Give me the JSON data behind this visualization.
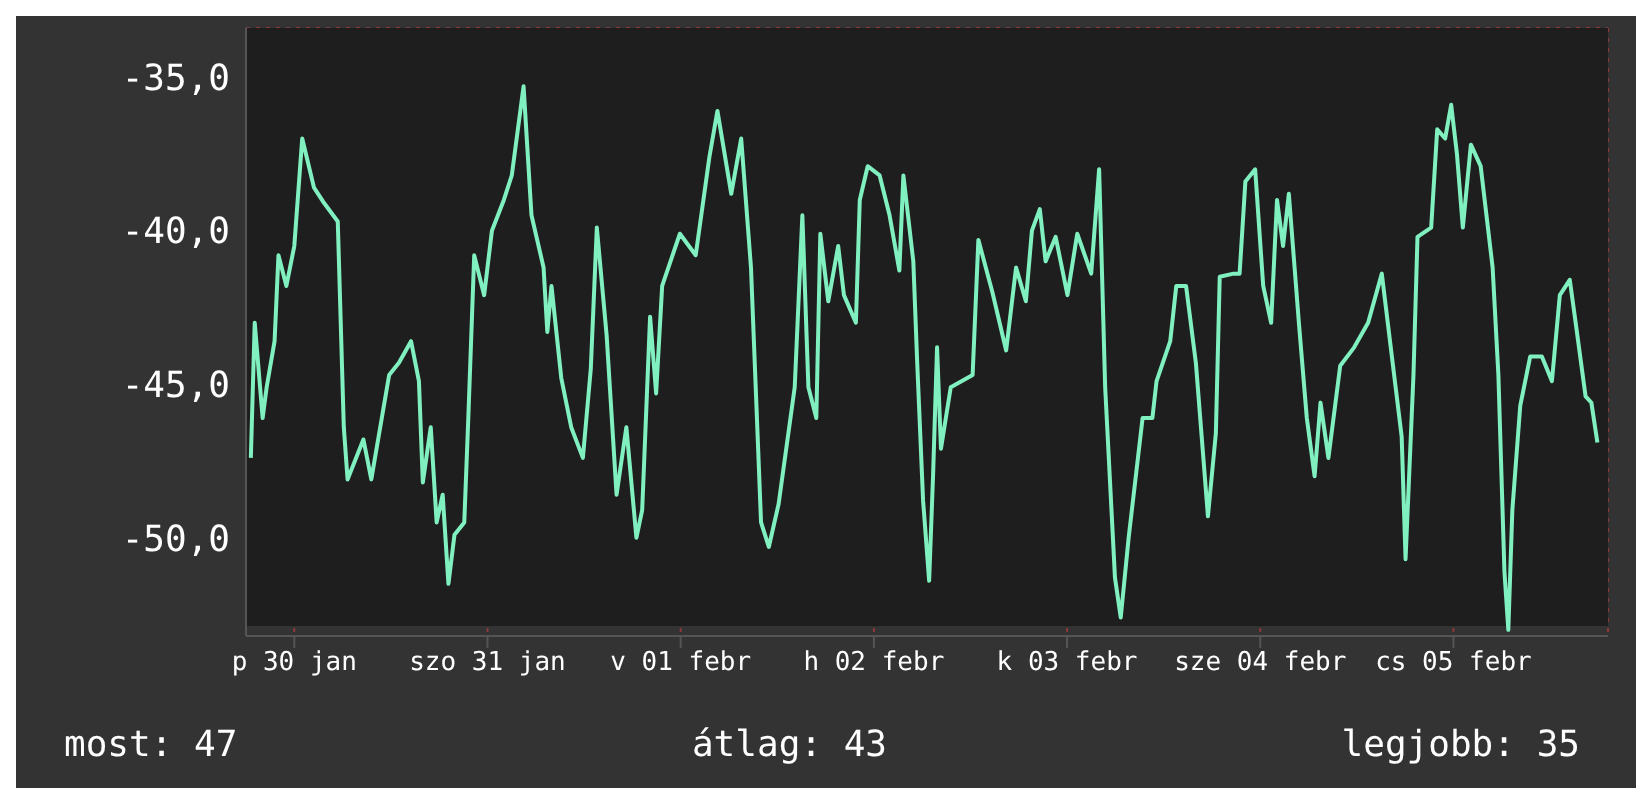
{
  "chart_data": {
    "type": "line",
    "xlim": [
      "--01-29T18:00",
      "--02-05T19:12"
    ],
    "ylim": [
      -53.2,
      -33.4
    ],
    "xticks": [
      {
        "value": "--01-30",
        "label": "p 30 jan"
      },
      {
        "value": "--01-31",
        "label": "szo 31 jan"
      },
      {
        "value": "--02-01",
        "label": "v 01 febr"
      },
      {
        "value": "--02-02",
        "label": "h 02 febr"
      },
      {
        "value": "--02-03",
        "label": "k 03 febr"
      },
      {
        "value": "--02-04",
        "label": "sze 04 febr"
      },
      {
        "value": "--02-05",
        "label": "cs 05 febr"
      }
    ],
    "yticks": [
      {
        "value": -35,
        "label": "-35,0"
      },
      {
        "value": -40,
        "label": "-40,0"
      },
      {
        "value": -45,
        "label": "-45,0"
      },
      {
        "value": -50,
        "label": "-50,0"
      }
    ],
    "grid": true,
    "legend": false,
    "marker": "none",
    "line_style": "solid",
    "annotations": [
      "most: 47",
      "átlag: 43",
      "legjobb: 35"
    ],
    "series": [
      {
        "color": "#80f0c0",
        "x": [
          "--01-29T18:36",
          "--01-29T19:05",
          "--01-29T20:04",
          "--01-29T20:34",
          "--01-29T21:33",
          "--01-29T22:02",
          "--01-29T23:01",
          "--01-30T00:00",
          "--01-30T00:59",
          "--01-30T02:27",
          "--01-30T03:42",
          "--01-30T05:24",
          "--01-30T06:09",
          "--01-30T06:37",
          "--01-30T08:35",
          "--01-30T09:34",
          "--01-30T11:47",
          "--01-30T13:00",
          "--01-30T14:30",
          "--01-30T15:29",
          "--01-30T15:58",
          "--01-30T16:57",
          "--01-30T17:41",
          "--01-30T18:26",
          "--01-30T19:09",
          "--01-30T19:54",
          "--01-30T21:07",
          "--01-30T21:37",
          "--01-30T22:21",
          "--01-30T23:35",
          "--01-31T00:33",
          "--01-31T02:02",
          "--01-31T03:01",
          "--01-31T04:29",
          "--01-31T05:28",
          "--01-31T06:58",
          "--01-31T07:26",
          "--01-31T07:57",
          "--01-31T09:10",
          "--01-31T10:24",
          "--01-31T11:51",
          "--01-31T12:50",
          "--01-31T13:35",
          "--01-31T14:48",
          "--01-31T16:02",
          "--01-31T17:15",
          "--01-31T18:30",
          "--01-31T19:13",
          "--01-31T20:12",
          "--01-31T20:57",
          "--01-31T21:42",
          "--01-31T23:54",
          "--02-01T01:52",
          "--02-01T03:34",
          "--02-01T04:34",
          "--02-01T06:17",
          "--02-01T07:31",
          "--02-01T08:44",
          "--02-01T09:59",
          "--02-01T10:57",
          "--02-01T12:10",
          "--02-01T14:10",
          "--02-01T15:07",
          "--02-01T15:52",
          "--02-01T16:51",
          "--02-01T17:21",
          "--02-01T18:20",
          "--02-01T19:34",
          "--02-01T20:17",
          "--02-01T21:46",
          "--02-01T22:15",
          "--02-01T23:14",
          "--02-02T00:43",
          "--02-02T01:57",
          "--02-02T03:10",
          "--02-02T03:40",
          "--02-02T04:54",
          "--02-02T05:23",
          "--02-02T06:07",
          "--02-02T06:52",
          "--02-02T07:21",
          "--02-02T07:51",
          "--02-02T08:20",
          "--02-02T09:33",
          "--02-02T12:16",
          "--02-02T12:59",
          "--02-02T14:43",
          "--02-02T16:26",
          "--02-02T17:40",
          "--02-02T18:53",
          "--02-02T19:38",
          "--02-02T20:37",
          "--02-02T21:20",
          "--02-02T22:35",
          "--02-03T00:03",
          "--02-03T01:16",
          "--02-03T03:00",
          "--02-03T03:59",
          "--02-03T04:44",
          "--02-03T05:57",
          "--02-03T06:40",
          "--02-03T07:39",
          "--02-03T09:23",
          "--02-03T10:36",
          "--02-03T11:07",
          "--02-03T12:49",
          "--02-03T13:34",
          "--02-03T14:47",
          "--02-03T16:00",
          "--02-03T17:30",
          "--02-03T18:29",
          "--02-03T18:58",
          "--02-03T20:41",
          "--02-03T21:26",
          "--02-03T22:09",
          "--02-03T23:22",
          "--02-04T00:22",
          "--02-04T01:21",
          "--02-04T02:05",
          "--02-04T02:50",
          "--02-04T03:33",
          "--02-04T04:48",
          "--02-04T05:47",
          "--02-04T06:45",
          "--02-04T07:29",
          "--02-04T08:28",
          "--02-04T09:56",
          "--02-04T11:40",
          "--02-04T13:24",
          "--02-04T15:06",
          "--02-04T16:21",
          "--02-04T17:34",
          "--02-04T18:03",
          "--02-04T19:02",
          "--02-04T19:32",
          "--02-04T21:14",
          "--02-04T21:59",
          "--02-04T22:58",
          "--02-04T23:43",
          "--02-05T00:26",
          "--02-05T01:10",
          "--02-05T02:10",
          "--02-05T03:23",
          "--02-05T04:52",
          "--02-05T05:35",
          "--02-05T06:20",
          "--02-05T06:49",
          "--02-05T07:19",
          "--02-05T08:18",
          "--02-05T09:32",
          "--02-05T10:59",
          "--02-05T12:14",
          "--02-05T13:13",
          "--02-05T14:27",
          "--02-05T15:11",
          "--02-05T16:25",
          "--02-05T17:08",
          "--02-05T17:53"
        ],
        "values": [
          -47.4,
          -43.0,
          -46.1,
          -45.1,
          -43.6,
          -40.8,
          -41.8,
          -40.5,
          -37.0,
          -38.6,
          -39.1,
          -39.7,
          -46.4,
          -48.1,
          -46.8,
          -48.1,
          -44.7,
          -44.3,
          -43.6,
          -44.9,
          -48.2,
          -46.4,
          -49.5,
          -48.6,
          -51.5,
          -49.9,
          -49.5,
          -46.1,
          -40.8,
          -42.1,
          -40.0,
          -39.0,
          -38.2,
          -35.3,
          -39.5,
          -41.2,
          -43.3,
          -41.8,
          -44.8,
          -46.4,
          -47.4,
          -44.5,
          -39.9,
          -43.4,
          -48.6,
          -46.4,
          -50.0,
          -49.1,
          -42.8,
          -45.3,
          -41.8,
          -40.1,
          -40.8,
          -37.6,
          -36.1,
          -38.8,
          -37.0,
          -41.2,
          -49.5,
          -50.3,
          -48.9,
          -45.1,
          -39.5,
          -45.1,
          -46.1,
          -40.1,
          -42.3,
          -40.5,
          -42.1,
          -43.0,
          -39.0,
          -37.9,
          -38.2,
          -39.5,
          -41.3,
          -38.2,
          -41.0,
          -44.3,
          -48.8,
          -51.4,
          -48.0,
          -43.8,
          -47.1,
          -45.1,
          -44.7,
          -40.3,
          -42.0,
          -43.9,
          -41.2,
          -42.3,
          -40.0,
          -39.3,
          -41.0,
          -40.2,
          -42.1,
          -40.1,
          -41.4,
          -38.0,
          -45.1,
          -51.3,
          -52.6,
          -50.0,
          -46.1,
          -46.1,
          -44.9,
          -43.6,
          -41.8,
          -41.8,
          -44.3,
          -49.3,
          -46.6,
          -41.5,
          -41.4,
          -41.4,
          -38.4,
          -38.0,
          -41.8,
          -43.0,
          -39.0,
          -40.5,
          -38.8,
          -43.0,
          -46.1,
          -48.0,
          -45.6,
          -47.4,
          -44.4,
          -43.8,
          -43.0,
          -41.4,
          -44.1,
          -46.7,
          -50.7,
          -44.7,
          -40.2,
          -39.9,
          -36.7,
          -37.0,
          -35.9,
          -37.5,
          -39.9,
          -37.2,
          -37.9,
          -41.2,
          -44.7,
          -51.1,
          -53.0,
          -49.1,
          -45.7,
          -44.1,
          -44.1,
          -44.9,
          -42.1,
          -41.6,
          -43.0,
          -45.4,
          -45.6,
          -46.9
        ]
      }
    ]
  }
}
